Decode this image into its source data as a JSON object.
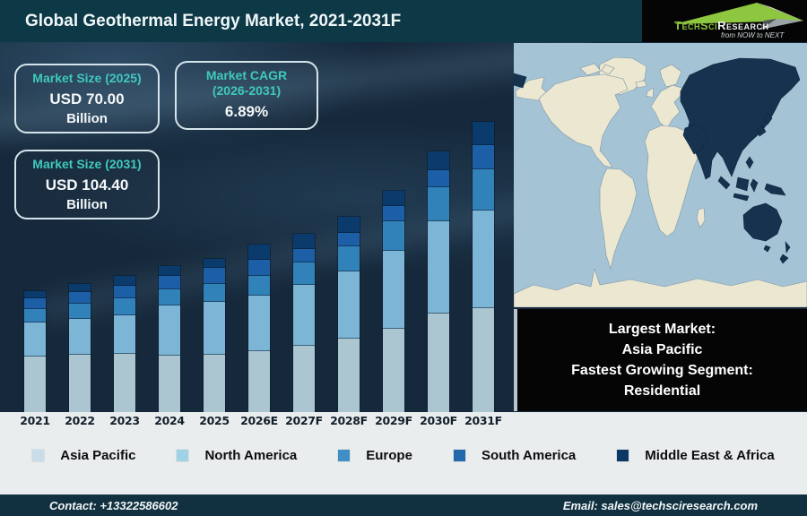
{
  "header": {
    "title": "Global Geothermal Energy Market, 2021-2031F",
    "logo": {
      "brand_primary": "TechSci",
      "brand_secondary": "Research",
      "tagline": "from NOW to NEXT",
      "accent_green": "#8dc63f"
    }
  },
  "info_boxes": [
    {
      "title": "Market Size (2025)",
      "value": "USD 70.00",
      "unit": "Billion"
    },
    {
      "title": "Market CAGR",
      "subtitle": "(2026-2031)",
      "value": "6.89%"
    },
    {
      "title": "Market Size (2031)",
      "value": "USD 104.40",
      "unit": "Billion"
    }
  ],
  "chart_data": {
    "type": "bar",
    "subtype": "stacked-bar",
    "title": "Global Geothermal Energy Market, 2021-2031F",
    "xlabel": "",
    "ylabel": "",
    "axis_values_shown": false,
    "legend_position": "bottom",
    "categories": [
      "2021",
      "2022",
      "2023",
      "2024",
      "2025",
      "2026E",
      "2027F",
      "2028F",
      "2029F",
      "2030F",
      "2031F"
    ],
    "series": [
      {
        "name": "Asia Pacific",
        "color": "#abc5d1",
        "legend_color": "#c9dde8",
        "values": [
          62,
          64,
          65,
          63,
          64,
          68,
          74,
          82,
          93,
          110,
          116
        ]
      },
      {
        "name": "North America",
        "color": "#7cb5d5",
        "legend_color": "#9fd2e4",
        "values": [
          38,
          40,
          43,
          56,
          59,
          62,
          68,
          75,
          87,
          103,
          109
        ]
      },
      {
        "name": "Europe",
        "color": "#3282ba",
        "legend_color": "#3f8ec6",
        "values": [
          15,
          17,
          19,
          18,
          20,
          22,
          25,
          28,
          33,
          38,
          46
        ]
      },
      {
        "name": "South America",
        "color": "#1d5fa7",
        "legend_color": "#2268ab",
        "values": [
          12,
          13,
          14,
          15,
          18,
          18,
          15,
          15,
          17,
          19,
          27
        ]
      },
      {
        "name": "Middle East & Africa",
        "color": "#0b3a6d",
        "legend_color": "#0c3866",
        "values": [
          8,
          9,
          11,
          11,
          10,
          17,
          17,
          18,
          17,
          21,
          26
        ]
      }
    ],
    "values_unit": "relative bar-segment heights (px), no numeric axis shown",
    "anchors_shown_on_image": {
      "market_size_2025_usd_billion": 70.0,
      "market_size_2031_usd_billion": 104.4,
      "cagr_2026_2031_percent": 6.89
    }
  },
  "map_panel": {
    "ocean_color": "#a4c4d6",
    "land_color": "#ece7d1",
    "highlight_color": "#16324e",
    "highlighted_region": "Asia Pacific"
  },
  "callout": {
    "lines": [
      "Largest Market:",
      "Asia Pacific",
      "Fastest Growing Segment:",
      "Residential"
    ]
  },
  "footer": {
    "contact": "Contact: +13322586602",
    "email": "Email: sales@techsciresearch.com"
  }
}
